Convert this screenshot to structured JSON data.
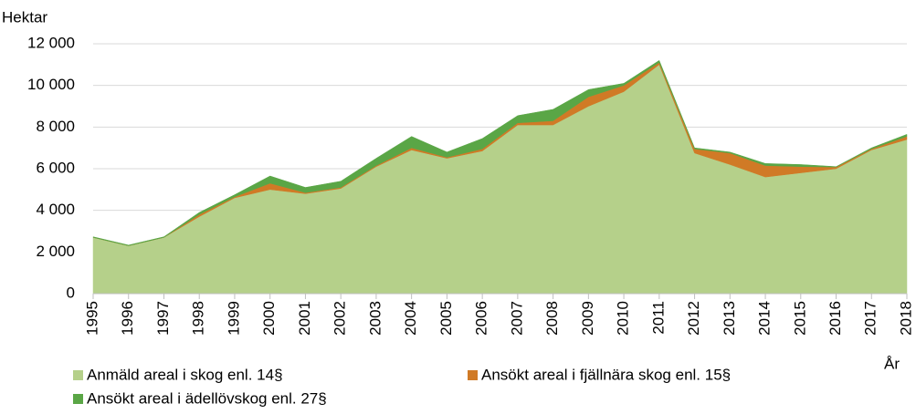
{
  "chart_data": {
    "type": "stacked_area",
    "y_label": "Hektar",
    "x_label": "År",
    "categories": [
      "1995",
      "1996",
      "1997",
      "1998",
      "1999",
      "2000",
      "2001",
      "2002",
      "2003",
      "2004",
      "2005",
      "2006",
      "2007",
      "2008",
      "2009",
      "2010",
      "2011",
      "2012",
      "2013",
      "2014",
      "2015",
      "2016",
      "2017",
      "2018"
    ],
    "series": [
      {
        "name": "Anmäld areal i skog enl. 14§",
        "color": "#b5d08a",
        "values": [
          2700,
          2300,
          2700,
          3700,
          4600,
          5000,
          4800,
          5050,
          6100,
          6900,
          6500,
          6850,
          8100,
          8100,
          9000,
          9700,
          11000,
          6750,
          6200,
          5600,
          5800,
          6000,
          6900,
          7400
        ]
      },
      {
        "name": "Ansökt areal i fjällnära skog enl. 15§",
        "color": "#d07a26",
        "values": [
          0,
          0,
          0,
          100,
          50,
          300,
          50,
          50,
          50,
          100,
          50,
          100,
          100,
          200,
          450,
          300,
          100,
          200,
          550,
          550,
          300,
          80,
          50,
          150
        ]
      },
      {
        "name": "Ansökt areal i ädellövskog enl. 27§",
        "color": "#5aa646",
        "values": [
          30,
          30,
          30,
          100,
          100,
          350,
          250,
          300,
          350,
          550,
          250,
          500,
          350,
          550,
          350,
          100,
          100,
          50,
          50,
          100,
          100,
          20,
          50,
          100
        ]
      }
    ],
    "ylim": [
      0,
      12000
    ],
    "yticks": [
      0,
      {
        "value": 2000,
        "label": "2 000"
      },
      {
        "value": 4000,
        "label": "4 000"
      },
      {
        "value": 6000,
        "label": "6 000"
      },
      {
        "value": 8000,
        "label": "8 000"
      },
      {
        "value": 10000,
        "label": "10 000"
      },
      {
        "value": 12000,
        "label": "12 000"
      }
    ],
    "grid": true,
    "legend": "bottom"
  }
}
